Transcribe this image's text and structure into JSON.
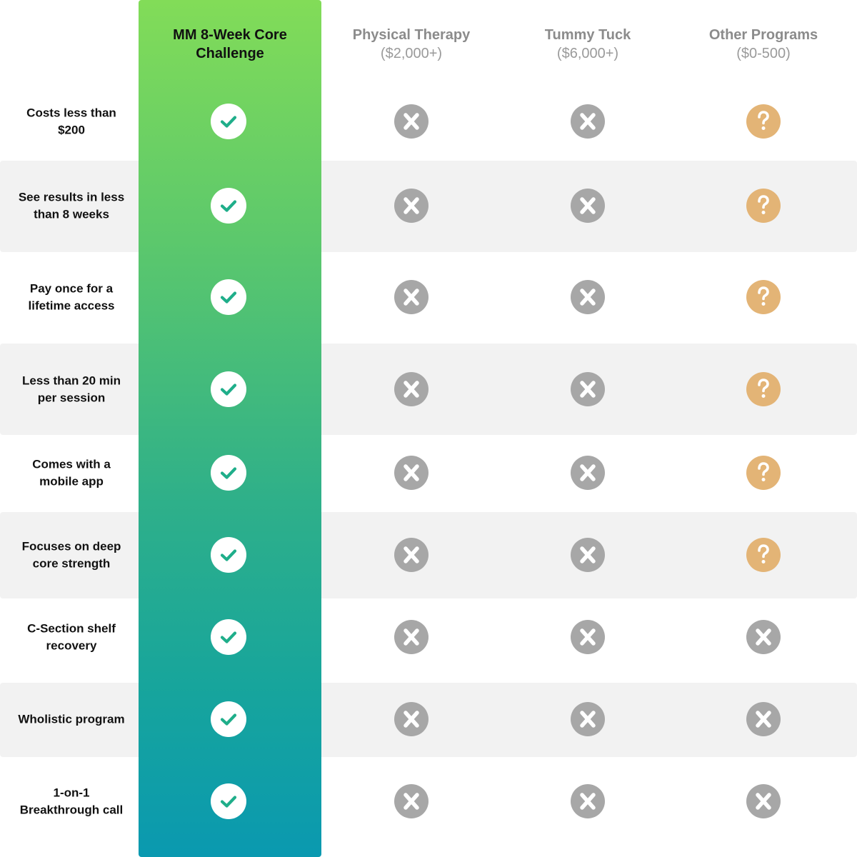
{
  "columns": [
    {
      "name": "MM 8-Week Core Challenge",
      "price": "",
      "highlight": true,
      "accent": "#6fd162"
    },
    {
      "name": "Physical Therapy",
      "price": "($2,000+)"
    },
    {
      "name": "Tummy Tuck",
      "price": "($6,000+)"
    },
    {
      "name": "Other Programs",
      "price": "($0-500)"
    }
  ],
  "rows": [
    {
      "label": "Costs less than $200",
      "marks": [
        "check",
        "x",
        "x",
        "question"
      ]
    },
    {
      "label": "See results in less than 8 weeks",
      "marks": [
        "check",
        "x",
        "x",
        "question"
      ]
    },
    {
      "label": "Pay once for a lifetime access",
      "marks": [
        "check",
        "x",
        "x",
        "question"
      ]
    },
    {
      "label": "Less than 20 min per session",
      "marks": [
        "check",
        "x",
        "x",
        "question"
      ]
    },
    {
      "label": "Comes with a mobile app",
      "marks": [
        "check",
        "x",
        "x",
        "question"
      ]
    },
    {
      "label": "Focuses on deep core strength",
      "marks": [
        "check",
        "x",
        "x",
        "question"
      ]
    },
    {
      "label": "C-Section shelf recovery",
      "marks": [
        "check",
        "x",
        "x",
        "x"
      ]
    },
    {
      "label": "Wholistic program",
      "marks": [
        "check",
        "x",
        "x",
        "x"
      ]
    },
    {
      "label": "1-on-1 Breakthrough call",
      "marks": [
        "check",
        "x",
        "x",
        "x"
      ]
    }
  ],
  "icons": {
    "check": {
      "name": "check-icon",
      "fill": "#ffffff",
      "stroke": "#1fae8a"
    },
    "x": {
      "name": "x-icon",
      "fill": "#a7a7a7",
      "glyph": "#ffffff"
    },
    "question": {
      "name": "question-icon",
      "fill": "#e3b476",
      "glyph": "#ffffff"
    }
  }
}
